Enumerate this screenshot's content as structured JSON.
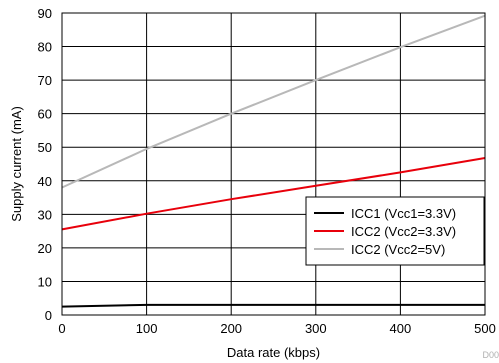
{
  "chart_data": {
    "type": "line",
    "title": "",
    "xlabel": "Data rate (kbps)",
    "ylabel": "Supply current (mA)",
    "xlim": [
      0,
      500
    ],
    "ylim": [
      0,
      90
    ],
    "x_ticks": [
      0,
      100,
      200,
      300,
      400,
      500
    ],
    "y_ticks": [
      0,
      10,
      20,
      30,
      40,
      50,
      60,
      70,
      80,
      90
    ],
    "grid": true,
    "legend_position": "lower-right",
    "series": [
      {
        "name": "ICC1 (Vcc1=3.3V)",
        "color": "#000000",
        "x": [
          0,
          100,
          200,
          300,
          400,
          500
        ],
        "y": [
          2.5,
          3.0,
          3.0,
          3.0,
          3.0,
          3.0
        ]
      },
      {
        "name": "ICC2 (Vcc2=3.3V)",
        "color": "#e8000b",
        "x": [
          0,
          100,
          200,
          300,
          400,
          500
        ],
        "y": [
          25.5,
          30.2,
          34.5,
          38.5,
          42.5,
          46.8
        ]
      },
      {
        "name": "ICC2 (Vcc2=5V)",
        "color": "#b8b8b8",
        "x": [
          0,
          100,
          200,
          300,
          400,
          500
        ],
        "y": [
          38.0,
          49.5,
          60.0,
          70.0,
          79.8,
          89.2
        ]
      }
    ]
  },
  "footnote": "D00"
}
